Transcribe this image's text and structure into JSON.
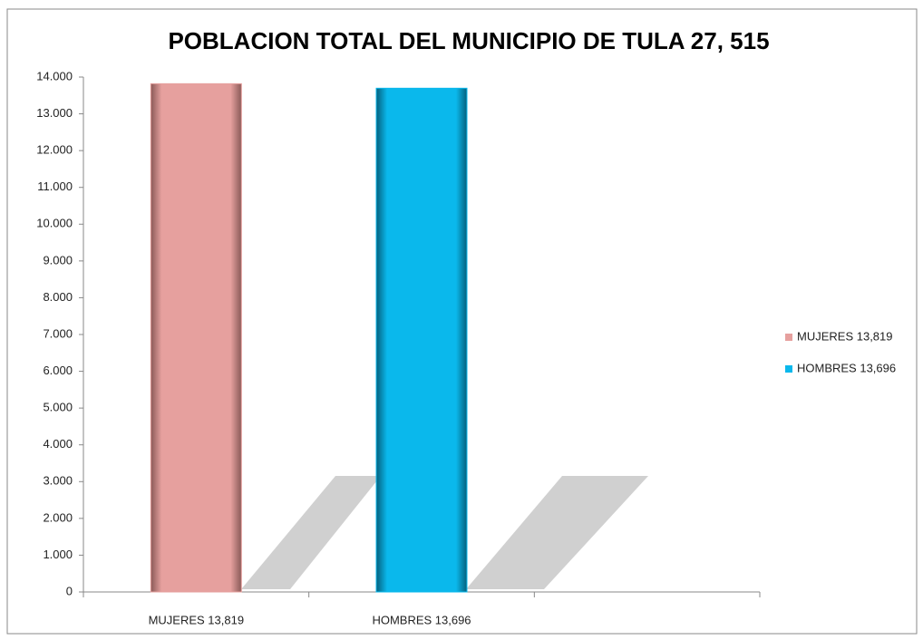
{
  "chart_data": {
    "type": "bar",
    "title": "POBLACION TOTAL DEL MUNICIPIO DE TULA 27, 515",
    "categories": [
      "MUJERES 13,819",
      "HOMBRES 13,696",
      null
    ],
    "series": [
      {
        "name": "MUJERES 13,819",
        "color": "#e6a09e",
        "values": [
          13819,
          null,
          null
        ]
      },
      {
        "name": "HOMBRES 13,696",
        "color": "#0ab8ec",
        "values": [
          null,
          13696,
          null
        ]
      }
    ],
    "ylim": [
      0,
      14000
    ],
    "yticks": [
      0,
      {
        "value": 1000,
        "label": "1.000"
      },
      {
        "value": 2000,
        "label": "2.000"
      },
      {
        "value": 3000,
        "label": "3.000"
      },
      {
        "value": 4000,
        "label": "4.000"
      },
      {
        "value": 5000,
        "label": "5.000"
      },
      {
        "value": 6000,
        "label": "6.000"
      },
      {
        "value": 7000,
        "label": "7.000"
      },
      {
        "value": 8000,
        "label": "8.000"
      },
      {
        "value": 9000,
        "label": "9.000"
      },
      {
        "value": 10000,
        "label": "10.000"
      },
      {
        "value": 11000,
        "label": "11.000"
      },
      {
        "value": 12000,
        "label": "12.000"
      },
      {
        "value": 13000,
        "label": "13.000"
      },
      {
        "value": 14000,
        "label": "14.000"
      }
    ],
    "legend": "right"
  }
}
